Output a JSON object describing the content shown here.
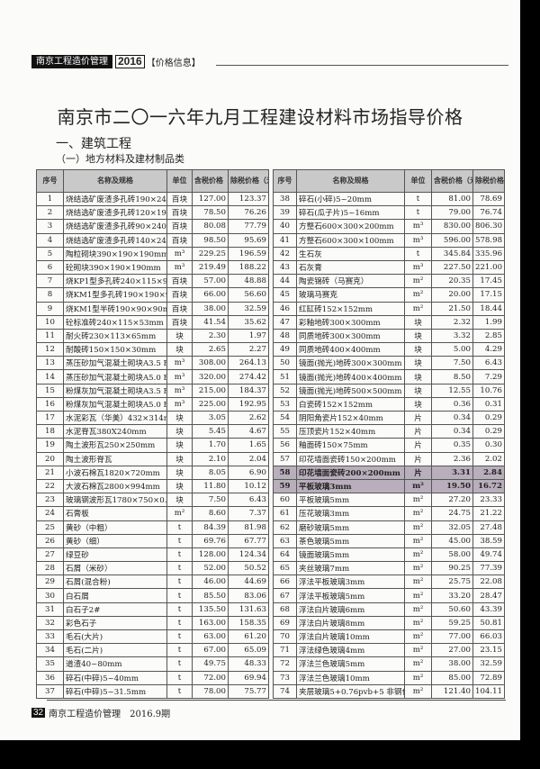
{
  "header": {
    "magazine": "南京工程造价管理",
    "year": "2016",
    "section": "【价格信息】"
  },
  "title": "南京市二〇一六年九月工程建设材料市场指导价格",
  "section": "一、建筑工程",
  "subsection": "（一）地方材料及建材制品类",
  "columns": [
    "序号",
    "名称及规格",
    "单位",
    "含税价格（元）",
    "除税价格（元）"
  ],
  "highlight_rows": [
    "58",
    "59"
  ],
  "highlight_color": "#b9aebb",
  "left_rows": [
    [
      "1",
      "烧结选矿废渣多孔砖190×240×90",
      "百块",
      "127.00",
      "123.37"
    ],
    [
      "2",
      "烧结选矿废渣多孔砖120×190×90",
      "百块",
      "78.50",
      "76.26"
    ],
    [
      "3",
      "烧结选矿废渣多孔砖90×240×90",
      "百块",
      "80.08",
      "77.79"
    ],
    [
      "4",
      "烧结选矿废渣多孔砖140×240×90",
      "百块",
      "98.50",
      "95.69"
    ],
    [
      "5",
      "陶粒砌块390×190×190mm",
      "m³",
      "229.25",
      "196.59"
    ],
    [
      "6",
      "砼砌块390×190×190mm",
      "m³",
      "219.49",
      "188.22"
    ],
    [
      "7",
      "烧KP1型多孔砖240×115×90mm",
      "百块",
      "57.00",
      "48.88"
    ],
    [
      "8",
      "烧KM1型多孔砖190×190×90mm",
      "百块",
      "66.00",
      "56.60"
    ],
    [
      "9",
      "烧KM1型半砖190×90×90mm",
      "百块",
      "38.00",
      "32.59"
    ],
    [
      "10",
      "砼标准砖240×115×53mm",
      "百块",
      "41.54",
      "35.62"
    ],
    [
      "11",
      "耐火砖230×113×65mm",
      "块",
      "2.30",
      "1.97"
    ],
    [
      "12",
      "耐酸砖150×150×30mm",
      "块",
      "2.65",
      "2.27"
    ],
    [
      "13",
      "蒸压砂加气混凝土砌块A3.5 B06",
      "m³",
      "308.00",
      "264.13"
    ],
    [
      "14",
      "蒸压砂加气混凝土砌块A5.0 B06",
      "m³",
      "320.00",
      "274.42"
    ],
    [
      "15",
      "粉煤灰加气混凝土砌块A3.5 B06",
      "m³",
      "215.00",
      "184.37"
    ],
    [
      "16",
      "粉煤灰加气混凝土砌块A5.0 B06",
      "m³",
      "225.00",
      "192.95"
    ],
    [
      "17",
      "水泥彩瓦（华美）432×314mm",
      "块",
      "3.05",
      "2.62"
    ],
    [
      "18",
      "水泥脊瓦380X240mm",
      "块",
      "5.45",
      "4.67"
    ],
    [
      "19",
      "陶土波形瓦250×250mm",
      "块",
      "1.70",
      "1.65"
    ],
    [
      "20",
      "陶土波形脊瓦",
      "块",
      "2.10",
      "2.04"
    ],
    [
      "21",
      "小波石棉瓦1820×720mm",
      "块",
      "8.05",
      "6.90"
    ],
    [
      "22",
      "大波石棉瓦2800×994mm",
      "块",
      "11.80",
      "10.12"
    ],
    [
      "23",
      "玻璃钢波形瓦1780×750×0.64mm",
      "块",
      "7.50",
      "6.43"
    ],
    [
      "24",
      "石膏板",
      "m²",
      "8.60",
      "7.37"
    ],
    [
      "25",
      "黄砂（中粗）",
      "t",
      "84.39",
      "81.98"
    ],
    [
      "26",
      "黄砂（细）",
      "t",
      "69.76",
      "67.77"
    ],
    [
      "27",
      "绿豆砂",
      "t",
      "128.00",
      "124.34"
    ],
    [
      "28",
      "石屑（米砂）",
      "t",
      "52.00",
      "50.52"
    ],
    [
      "29",
      "石屑(混合粉)",
      "t",
      "46.00",
      "44.69"
    ],
    [
      "30",
      "白石屑",
      "t",
      "85.50",
      "83.06"
    ],
    [
      "31",
      "白石子2#",
      "t",
      "135.50",
      "131.63"
    ],
    [
      "32",
      "彩色石子",
      "t",
      "163.00",
      "158.35"
    ],
    [
      "33",
      "毛石(大片)",
      "t",
      "63.00",
      "61.20"
    ],
    [
      "34",
      "毛石(二片)",
      "t",
      "67.00",
      "65.09"
    ],
    [
      "35",
      "道渣40~80mm",
      "t",
      "49.75",
      "48.33"
    ],
    [
      "36",
      "碎石(中碎)5~40mm",
      "t",
      "72.00",
      "69.94"
    ],
    [
      "37",
      "碎石(中碎)5~31.5mm",
      "t",
      "78.00",
      "75.77"
    ]
  ],
  "right_rows": [
    [
      "38",
      "碎石(小碎)5~20mm",
      "t",
      "81.00",
      "78.69"
    ],
    [
      "39",
      "碎石(瓜子片)5~16mm",
      "t",
      "79.00",
      "76.74"
    ],
    [
      "40",
      "方整石600×300×200mm",
      "m³",
      "830.00",
      "806.30"
    ],
    [
      "41",
      "方整石600×300×100mm",
      "m³",
      "596.00",
      "578.98"
    ],
    [
      "42",
      "生石灰",
      "t",
      "345.84",
      "335.96"
    ],
    [
      "43",
      "石灰膏",
      "m³",
      "227.50",
      "221.00"
    ],
    [
      "44",
      "陶瓷锦砖（马赛克）",
      "m²",
      "20.35",
      "17.45"
    ],
    [
      "45",
      "玻璃马赛克",
      "m²",
      "20.00",
      "17.15"
    ],
    [
      "46",
      "红缸砖152×152mm",
      "m²",
      "21.50",
      "18.44"
    ],
    [
      "47",
      "彩釉地砖300×300mm",
      "块",
      "2.32",
      "1.99"
    ],
    [
      "48",
      "同质地砖300×300mm",
      "块",
      "3.32",
      "2.85"
    ],
    [
      "49",
      "同质地砖400×400mm",
      "块",
      "5.00",
      "4.29"
    ],
    [
      "50",
      "镜面(抛光)地砖300×300mm",
      "块",
      "7.50",
      "6.43"
    ],
    [
      "51",
      "镜面(抛光)地砖400×400mm",
      "块",
      "8.50",
      "7.29"
    ],
    [
      "52",
      "镜面(抛光)地砖500×500mm",
      "块",
      "12.55",
      "10.76"
    ],
    [
      "53",
      "白瓷砖152×152mm",
      "块",
      "0.36",
      "0.31"
    ],
    [
      "54",
      "阴阳角瓷片152×40mm",
      "片",
      "0.34",
      "0.29"
    ],
    [
      "55",
      "压顶瓷片152×40mm",
      "片",
      "0.34",
      "0.29"
    ],
    [
      "56",
      "釉面砖150×75mm",
      "片",
      "0.35",
      "0.30"
    ],
    [
      "57",
      "印花墙面瓷砖150×200mm",
      "片",
      "2.36",
      "2.02"
    ],
    [
      "58",
      "印花墙面瓷砖200×200mm",
      "片",
      "3.31",
      "2.84"
    ],
    [
      "59",
      "平板玻璃3mm",
      "m²",
      "19.50",
      "16.72"
    ],
    [
      "60",
      "平板玻璃5mm",
      "m²",
      "27.20",
      "23.33"
    ],
    [
      "61",
      "压花玻璃3mm",
      "m²",
      "24.75",
      "21.22"
    ],
    [
      "62",
      "磨砂玻璃5mm",
      "m²",
      "32.05",
      "27.48"
    ],
    [
      "63",
      "茶色玻璃5mm",
      "m²",
      "45.00",
      "38.59"
    ],
    [
      "64",
      "镜面玻璃5mm",
      "m²",
      "58.00",
      "49.74"
    ],
    [
      "65",
      "夹丝玻璃7mm",
      "m²",
      "90.25",
      "77.39"
    ],
    [
      "66",
      "浮法平板玻璃3mm",
      "m²",
      "25.75",
      "22.08"
    ],
    [
      "67",
      "浮法平板玻璃5mm",
      "m²",
      "33.20",
      "28.47"
    ],
    [
      "68",
      "浮法白片玻璃6mm",
      "m²",
      "50.60",
      "43.39"
    ],
    [
      "69",
      "浮法白片玻璃8mm",
      "m²",
      "59.25",
      "50.81"
    ],
    [
      "70",
      "浮法白片玻璃10mm",
      "m²",
      "77.00",
      "66.03"
    ],
    [
      "71",
      "浮法绿色玻璃4mm",
      "m²",
      "27.00",
      "23.15"
    ],
    [
      "72",
      "浮法兰色玻璃5mm",
      "m²",
      "38.00",
      "32.59"
    ],
    [
      "73",
      "浮法兰色玻璃10mm",
      "m²",
      "85.00",
      "72.89"
    ],
    [
      "74",
      "夹层玻璃5+0.76pvb+5 非钢化",
      "m²",
      "121.40",
      "104.11"
    ]
  ],
  "footer": {
    "page": "32",
    "text": "南京工程造价管理　2016.9期"
  }
}
